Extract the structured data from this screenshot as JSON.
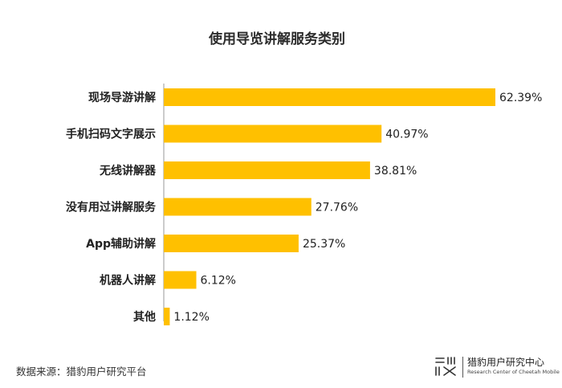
{
  "chart_data": {
    "type": "bar",
    "orientation": "horizontal",
    "title": "使用导览讲解服务类别",
    "categories": [
      "现场导游讲解",
      "手机扫码文字展示",
      "无线讲解器",
      "没有用过讲解服务",
      "App辅助讲解",
      "机器人讲解",
      "其他"
    ],
    "values": [
      62.39,
      40.97,
      38.81,
      27.76,
      25.37,
      6.12,
      1.12
    ],
    "value_labels": [
      "62.39%",
      "40.97%",
      "38.81%",
      "27.76%",
      "25.37%",
      "6.12%",
      "1.12%"
    ],
    "unit": "%",
    "xlim": [
      0,
      62.39
    ],
    "grid": false,
    "bar_color": "#FFC000"
  },
  "footer": {
    "source": "数据来源：猎豹用户研究平台",
    "brand_name": "猎豹用户研究中心",
    "brand_sub": "Research Center of Cheetah Mobile"
  }
}
